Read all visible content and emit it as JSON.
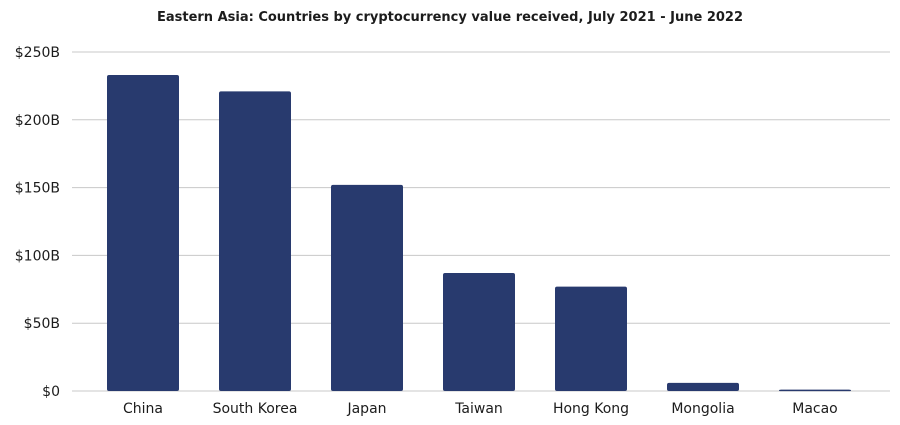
{
  "chart_data": {
    "type": "bar",
    "title": "Eastern Asia: Countries by cryptocurrency value received, July 2021 - June 2022",
    "xlabel": "",
    "ylabel": "",
    "categories": [
      "China",
      "South Korea",
      "Japan",
      "Taiwan",
      "Hong Kong",
      "Mongolia",
      "Macao"
    ],
    "values": [
      233,
      221,
      152,
      87,
      77,
      6,
      1
    ],
    "value_unit": "billion USD",
    "ylim": [
      0,
      250
    ],
    "yticks": [
      0,
      50,
      100,
      150,
      200,
      250
    ],
    "ytick_labels": [
      "$0",
      "$50B",
      "$100B",
      "$150B",
      "$200B",
      "$250B"
    ],
    "grid": true,
    "legend": "none",
    "colors": {
      "bar": "#283a6e",
      "grid": "#c8c8c8",
      "text": "#1c1c1c"
    }
  }
}
